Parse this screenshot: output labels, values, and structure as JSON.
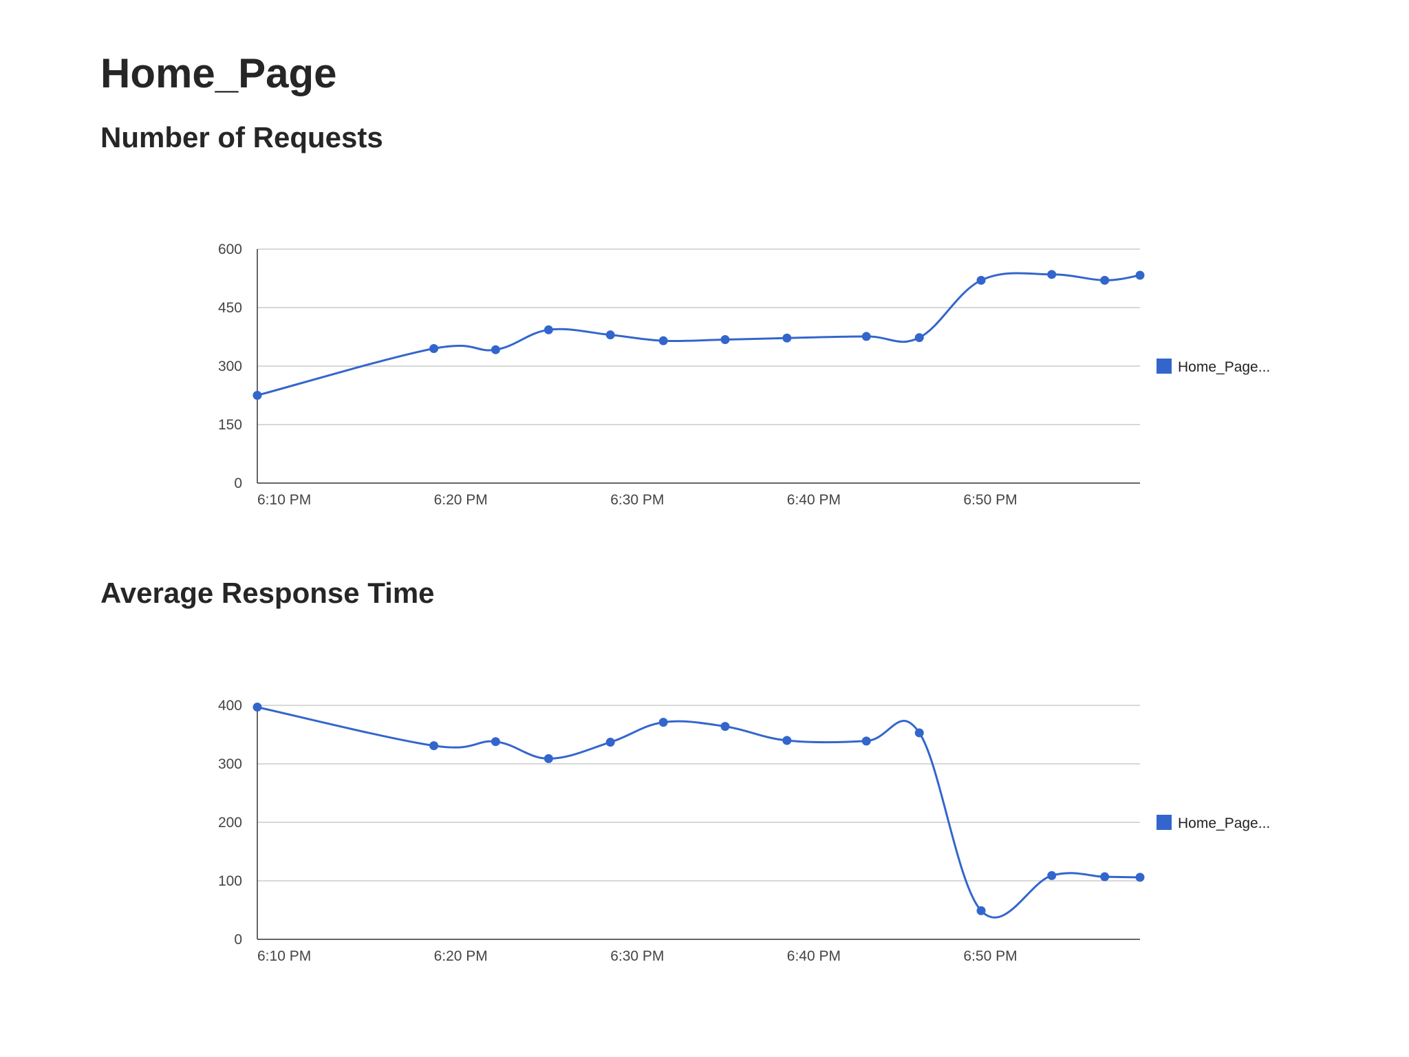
{
  "page": {
    "title": "Home_Page"
  },
  "colors": {
    "series": "#3366cc",
    "grid": "#cccccc",
    "axis": "#333333"
  },
  "chart_data": [
    {
      "type": "line",
      "title": "Number of Requests",
      "xlabel": "",
      "ylabel": "",
      "x_tick_labels": [
        "6:10 PM",
        "6:20 PM",
        "6:30 PM",
        "6:40 PM",
        "6:50 PM"
      ],
      "x_ticks": [
        "18:10",
        "18:20",
        "18:30",
        "18:40",
        "18:50"
      ],
      "xlim": [
        "18:10",
        "19:00"
      ],
      "y_ticks": [
        0,
        150,
        300,
        450,
        600
      ],
      "y_tick_labels": [
        "0",
        "150",
        "300",
        "450",
        "600"
      ],
      "ylim": [
        0,
        600
      ],
      "grid": true,
      "legend": "right",
      "series": [
        {
          "name": "Home_Page...",
          "x": [
            "18:10",
            "18:20",
            "18:23.5",
            "18:26.5",
            "18:30",
            "18:33",
            "18:36.5",
            "18:40",
            "18:44.5",
            "18:47.5",
            "18:51",
            "18:55",
            "18:58",
            "19:00"
          ],
          "values": [
            225,
            345,
            342,
            393,
            380,
            365,
            368,
            372,
            376,
            373,
            520,
            535,
            520,
            533
          ]
        }
      ]
    },
    {
      "type": "line",
      "title": "Average Response Time",
      "xlabel": "",
      "ylabel": "",
      "x_tick_labels": [
        "6:10 PM",
        "6:20 PM",
        "6:30 PM",
        "6:40 PM",
        "6:50 PM"
      ],
      "x_ticks": [
        "18:10",
        "18:20",
        "18:30",
        "18:40",
        "18:50"
      ],
      "xlim": [
        "18:10",
        "19:00"
      ],
      "y_ticks": [
        0,
        100,
        200,
        300,
        400
      ],
      "y_tick_labels": [
        "0",
        "100",
        "200",
        "300",
        "400"
      ],
      "ylim": [
        0,
        400
      ],
      "grid": true,
      "legend": "right",
      "series": [
        {
          "name": "Home_Page...",
          "x": [
            "18:10",
            "18:20",
            "18:23.5",
            "18:26.5",
            "18:30",
            "18:33",
            "18:36.5",
            "18:40",
            "18:44.5",
            "18:47.5",
            "18:51",
            "18:55",
            "18:58",
            "19:00"
          ],
          "values": [
            397,
            331,
            338,
            309,
            337,
            371,
            364,
            340,
            339,
            353,
            49,
            109,
            107,
            106
          ]
        }
      ]
    }
  ]
}
